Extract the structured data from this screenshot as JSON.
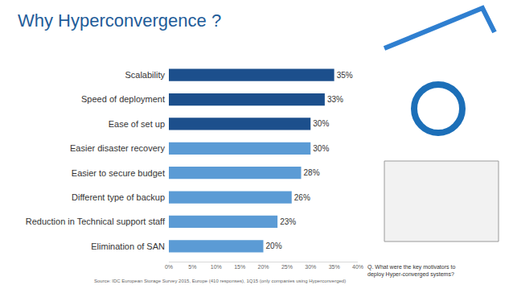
{
  "chart_data": {
    "type": "bar",
    "title": "Why Hyperconvergence ?",
    "orientation": "horizontal",
    "categories": [
      "Scalability",
      "Speed of deployment",
      "Ease of set up",
      "Easier disaster recovery",
      "Easier to secure budget",
      "Different type of backup",
      "Reduction in Technical support staff",
      "Elimination of SAN"
    ],
    "values": [
      35,
      33,
      30,
      30,
      28,
      26,
      23,
      20
    ],
    "value_labels": [
      "35%",
      "33%",
      "30%",
      "30%",
      "28%",
      "26%",
      "23%",
      "20%"
    ],
    "colors": [
      "#1c4f8c",
      "#1c4f8c",
      "#1c4f8c",
      "#5b9bd5",
      "#5b9bd5",
      "#5b9bd5",
      "#5b9bd5",
      "#5b9bd5"
    ],
    "data_labels": true,
    "xlim": [
      0,
      40
    ],
    "xticks": [
      {
        "value": 0,
        "label": "0%"
      },
      {
        "value": 5,
        "label": "5%"
      },
      {
        "value": 10,
        "label": "10%"
      },
      {
        "value": 15,
        "label": "15%"
      },
      {
        "value": 20,
        "label": "20%"
      },
      {
        "value": 25,
        "label": "25%"
      },
      {
        "value": 30,
        "label": "30%"
      },
      {
        "value": 35,
        "label": "35%"
      },
      {
        "value": 40,
        "label": "40%"
      }
    ],
    "grid": false,
    "annotations": [
      "Source: IDC European Storage Survey 2015, Europe (410 responses), 1Q15 (only companies using Hyperconverged)",
      "Q. What were the key motivators to deploy Hyper-converged systems?"
    ]
  }
}
